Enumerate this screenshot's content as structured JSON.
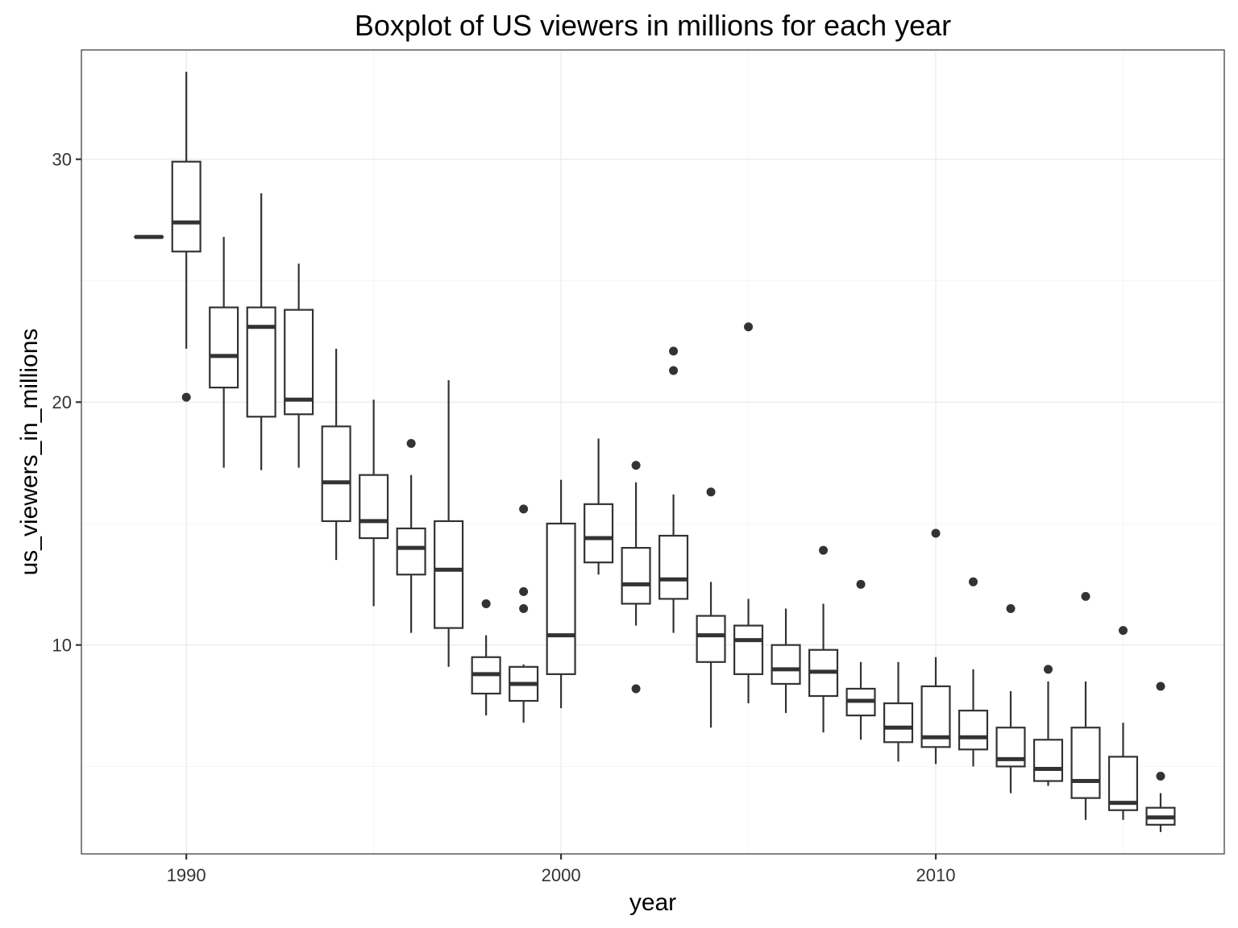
{
  "chart_data": {
    "type": "boxplot",
    "title": "Boxplot of US viewers in millions for each year",
    "xlabel": "year",
    "ylabel": "us_viewers_in_millions",
    "xlim": [
      1987.2,
      2017.7
    ],
    "ylim": [
      1.4,
      34.5
    ],
    "x_ticks": [
      1990,
      2000,
      2010
    ],
    "y_ticks": [
      10,
      20,
      30
    ],
    "grid": true,
    "legend": "none",
    "box_color": "#333333",
    "box_fill": "#ffffff",
    "grid_color": "#ebebeb",
    "boxes": [
      {
        "year": 1989,
        "low": 26.8,
        "q1": 26.8,
        "median": 26.8,
        "q3": 26.8,
        "high": 26.8,
        "outliers": []
      },
      {
        "year": 1990,
        "low": 22.2,
        "q1": 26.2,
        "median": 27.4,
        "q3": 29.9,
        "high": 33.6,
        "outliers": [
          20.2
        ]
      },
      {
        "year": 1991,
        "low": 17.3,
        "q1": 20.6,
        "median": 21.9,
        "q3": 23.9,
        "high": 26.8,
        "outliers": []
      },
      {
        "year": 1992,
        "low": 17.2,
        "q1": 19.4,
        "median": 23.1,
        "q3": 23.9,
        "high": 28.6,
        "outliers": []
      },
      {
        "year": 1993,
        "low": 17.3,
        "q1": 19.5,
        "median": 20.1,
        "q3": 23.8,
        "high": 25.7,
        "outliers": []
      },
      {
        "year": 1994,
        "low": 13.5,
        "q1": 15.1,
        "median": 16.7,
        "q3": 19.0,
        "high": 22.2,
        "outliers": []
      },
      {
        "year": 1995,
        "low": 11.6,
        "q1": 14.4,
        "median": 15.1,
        "q3": 17.0,
        "high": 20.1,
        "outliers": []
      },
      {
        "year": 1996,
        "low": 10.5,
        "q1": 12.9,
        "median": 14.0,
        "q3": 14.8,
        "high": 17.0,
        "outliers": [
          18.3
        ]
      },
      {
        "year": 1997,
        "low": 9.1,
        "q1": 10.7,
        "median": 13.1,
        "q3": 15.1,
        "high": 20.9,
        "outliers": []
      },
      {
        "year": 1998,
        "low": 7.1,
        "q1": 8.0,
        "median": 8.8,
        "q3": 9.5,
        "high": 10.4,
        "outliers": [
          11.7
        ]
      },
      {
        "year": 1999,
        "low": 6.8,
        "q1": 7.7,
        "median": 8.4,
        "q3": 9.1,
        "high": 9.2,
        "outliers": [
          15.6,
          12.2,
          11.5
        ]
      },
      {
        "year": 2000,
        "low": 7.4,
        "q1": 8.8,
        "median": 10.4,
        "q3": 15.0,
        "high": 16.8,
        "outliers": []
      },
      {
        "year": 2001,
        "low": 12.9,
        "q1": 13.4,
        "median": 14.4,
        "q3": 15.8,
        "high": 18.5,
        "outliers": []
      },
      {
        "year": 2002,
        "low": 10.8,
        "q1": 11.7,
        "median": 12.5,
        "q3": 14.0,
        "high": 16.7,
        "outliers": [
          17.4,
          8.2
        ]
      },
      {
        "year": 2003,
        "low": 10.5,
        "q1": 11.9,
        "median": 12.7,
        "q3": 14.5,
        "high": 16.2,
        "outliers": [
          22.1,
          21.3
        ]
      },
      {
        "year": 2004,
        "low": 6.6,
        "q1": 9.3,
        "median": 10.4,
        "q3": 11.2,
        "high": 12.6,
        "outliers": [
          16.3
        ]
      },
      {
        "year": 2005,
        "low": 7.6,
        "q1": 8.8,
        "median": 10.2,
        "q3": 10.8,
        "high": 11.9,
        "outliers": [
          23.1
        ]
      },
      {
        "year": 2006,
        "low": 7.2,
        "q1": 8.4,
        "median": 9.0,
        "q3": 10.0,
        "high": 11.5,
        "outliers": []
      },
      {
        "year": 2007,
        "low": 6.4,
        "q1": 7.9,
        "median": 8.9,
        "q3": 9.8,
        "high": 11.7,
        "outliers": [
          13.9
        ]
      },
      {
        "year": 2008,
        "low": 6.1,
        "q1": 7.1,
        "median": 7.7,
        "q3": 8.2,
        "high": 9.3,
        "outliers": [
          12.5
        ]
      },
      {
        "year": 2009,
        "low": 5.2,
        "q1": 6.0,
        "median": 6.6,
        "q3": 7.6,
        "high": 9.3,
        "outliers": []
      },
      {
        "year": 2010,
        "low": 5.1,
        "q1": 5.8,
        "median": 6.2,
        "q3": 8.3,
        "high": 9.5,
        "outliers": [
          14.6
        ]
      },
      {
        "year": 2011,
        "low": 5.0,
        "q1": 5.7,
        "median": 6.2,
        "q3": 7.3,
        "high": 9.0,
        "outliers": [
          12.6
        ]
      },
      {
        "year": 2012,
        "low": 3.9,
        "q1": 5.0,
        "median": 5.3,
        "q3": 6.6,
        "high": 8.1,
        "outliers": [
          11.5
        ]
      },
      {
        "year": 2013,
        "low": 4.2,
        "q1": 4.4,
        "median": 4.9,
        "q3": 6.1,
        "high": 8.5,
        "outliers": [
          9.0
        ]
      },
      {
        "year": 2014,
        "low": 2.8,
        "q1": 3.7,
        "median": 4.4,
        "q3": 6.6,
        "high": 8.5,
        "outliers": [
          12.0
        ]
      },
      {
        "year": 2015,
        "low": 2.8,
        "q1": 3.2,
        "median": 3.5,
        "q3": 5.4,
        "high": 6.8,
        "outliers": [
          10.6
        ]
      },
      {
        "year": 2016,
        "low": 2.3,
        "q1": 2.6,
        "median": 2.9,
        "q3": 3.3,
        "high": 3.9,
        "outliers": [
          8.3,
          4.6
        ]
      }
    ]
  }
}
